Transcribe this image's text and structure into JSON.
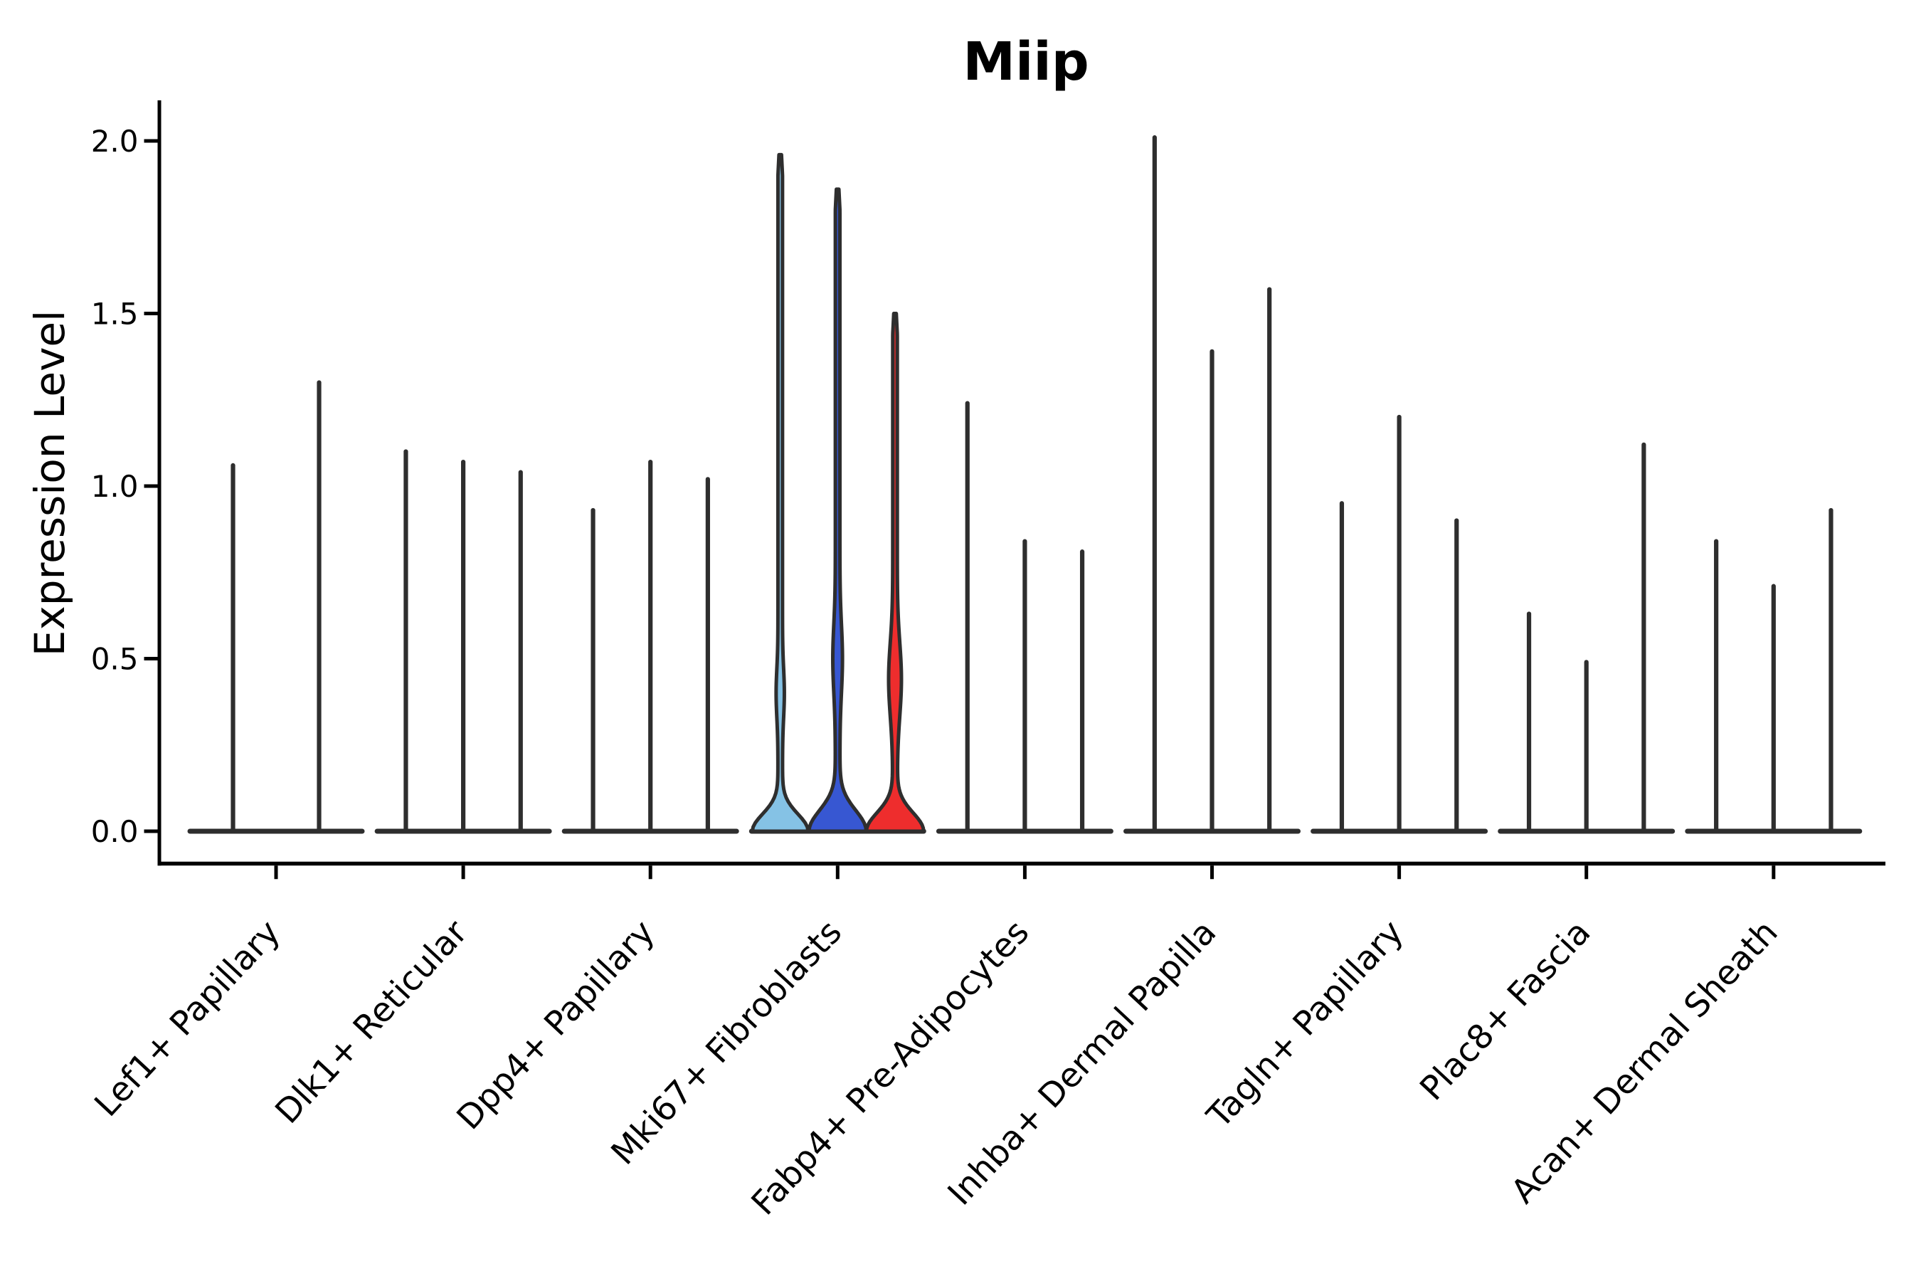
{
  "title": "Miip",
  "colors": {
    "background": "#FFFFFF",
    "axis": "#000000",
    "violin_outline": "#2E2E2E",
    "highlight_light_blue": "#85C2E5",
    "highlight_dark_blue": "#3757D2",
    "highlight_red": "#EE2D2D"
  },
  "chart_data": {
    "type": "violin",
    "title": "Miip",
    "xlabel": "",
    "ylabel": "Expression Level",
    "ylim": [
      0,
      2.15
    ],
    "yticks": [
      0.0,
      0.5,
      1.0,
      1.5,
      2.0
    ],
    "ytick_labels": [
      "0.0",
      "0.5",
      "1.0",
      "1.5",
      "2.0"
    ],
    "grid": false,
    "legend_position": "none",
    "xlabel_rotation_deg": 47,
    "categories": [
      "Lef1+ Papillary",
      "Dlk1+ Reticular",
      "Dpp4+ Papillary",
      "Mki67+ Fibroblasts",
      "Fabp4+ Pre-Adipocytes",
      "Inhba+ Dermal Papilla",
      "Tagln+ Papillary",
      "Plac8+ Fascia",
      "Acan+ Dermal Sheath"
    ],
    "groups": [
      {
        "label": "Lef1+ Papillary",
        "violins": [
          {
            "style": "spike",
            "max": 1.06
          },
          {
            "style": "spike",
            "max": 1.3
          }
        ]
      },
      {
        "label": "Dlk1+ Reticular",
        "violins": [
          {
            "style": "spike",
            "max": 1.1
          },
          {
            "style": "spike",
            "max": 1.07
          },
          {
            "style": "spike",
            "max": 1.04
          }
        ]
      },
      {
        "label": "Dpp4+ Papillary",
        "violins": [
          {
            "style": "spike",
            "max": 0.93
          },
          {
            "style": "spike",
            "max": 1.07
          },
          {
            "style": "spike",
            "max": 1.02
          }
        ]
      },
      {
        "label": "Mki67+ Fibroblasts",
        "violins": [
          {
            "style": "filled",
            "max": 1.96,
            "fill": "#85C2E5",
            "base_bulge": {
              "amp": 36,
              "sigma": 0.07
            },
            "mid_bulge": {
              "amp": 2.6,
              "center": 0.4,
              "sigma": 0.1
            }
          },
          {
            "style": "filled",
            "max": 1.86,
            "fill": "#3757D2",
            "base_bulge": {
              "amp": 37,
              "sigma": 0.085
            },
            "mid_bulge": {
              "amp": 3.6,
              "center": 0.5,
              "sigma": 0.14
            }
          },
          {
            "style": "filled",
            "max": 1.5,
            "fill": "#EE2D2D",
            "base_bulge": {
              "amp": 37,
              "sigma": 0.075
            },
            "mid_bulge": {
              "amp": 5.8,
              "center": 0.44,
              "sigma": 0.15
            }
          }
        ]
      },
      {
        "label": "Fabp4+ Pre-Adipocytes",
        "violins": [
          {
            "style": "spike",
            "max": 1.24
          },
          {
            "style": "spike",
            "max": 0.84
          },
          {
            "style": "spike",
            "max": 0.81
          }
        ]
      },
      {
        "label": "Inhba+ Dermal Papilla",
        "violins": [
          {
            "style": "spike",
            "max": 2.01
          },
          {
            "style": "spike",
            "max": 1.39
          },
          {
            "style": "spike",
            "max": 1.57
          }
        ]
      },
      {
        "label": "Tagln+ Papillary",
        "violins": [
          {
            "style": "spike",
            "max": 0.95
          },
          {
            "style": "spike",
            "max": 1.2
          },
          {
            "style": "spike",
            "max": 0.9
          }
        ]
      },
      {
        "label": "Plac8+ Fascia",
        "violins": [
          {
            "style": "spike",
            "max": 0.63
          },
          {
            "style": "spike",
            "max": 0.49
          },
          {
            "style": "spike",
            "max": 1.12
          }
        ]
      },
      {
        "label": "Acan+ Dermal Sheath",
        "violins": [
          {
            "style": "spike",
            "max": 0.84
          },
          {
            "style": "spike",
            "max": 0.71
          },
          {
            "style": "spike",
            "max": 0.93
          }
        ]
      }
    ]
  }
}
